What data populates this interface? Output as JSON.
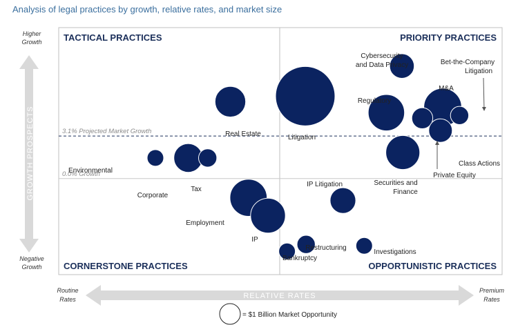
{
  "chart_data": {
    "type": "scatter",
    "title": "Analysis of legal practices by growth, relative rates, and market size",
    "quadrants": {
      "top_left": "TACTICAL PRACTICES",
      "top_right": "PRIORITY PRACTICES",
      "bottom_left": "CORNERSTONE PRACTICES",
      "bottom_right": "OPPORTUNISTIC PRACTICES"
    },
    "y_axis": {
      "label": "GROWTH PROSPECTS",
      "top_lines": [
        "Higher",
        "Growth"
      ],
      "bottom_lines": [
        "Negative",
        "Growth"
      ]
    },
    "x_axis": {
      "label": "RELATIVE RATES",
      "left_lines": [
        "Routine",
        "Rates"
      ],
      "right_lines": [
        "Premium",
        "Rates"
      ]
    },
    "reference_lines": [
      {
        "label": "3.1% Projected Market Growth",
        "y": 3.1,
        "style": "dashed"
      },
      {
        "label": "0.0% Growth",
        "y": 0.0,
        "style": "solid"
      }
    ],
    "legend": {
      "label": "= $1 Billion Market Opportunity",
      "size": 1
    },
    "xlim": [
      0,
      100
    ],
    "ylim": [
      -7,
      11
    ],
    "points": [
      {
        "label": "Real Estate",
        "x": 38.7,
        "y": 5.6,
        "size": 1.7
      },
      {
        "label": "Litigation",
        "x": 55.6,
        "y": 6.0,
        "size": 6.4
      },
      {
        "label": "Cybersecurity and Data Privacy",
        "x": 77.4,
        "y": 8.2,
        "size": 1.1
      },
      {
        "label": "Regulatory",
        "x": 73.9,
        "y": 4.8,
        "size": 2.4
      },
      {
        "label": "M&A",
        "x": 86.6,
        "y": 5.2,
        "size": 2.6
      },
      {
        "label": "Bet-the-Company Litigation",
        "x": 90.4,
        "y": 4.6,
        "size": 0.6
      },
      {
        "label": "Private Equity",
        "x": 82.0,
        "y": 4.4,
        "size": 0.8
      },
      {
        "label": "Class Actions",
        "x": 86.1,
        "y": 3.5,
        "size": 1.0
      },
      {
        "label": "Securities and Finance",
        "x": 77.6,
        "y": 1.9,
        "size": 2.1
      },
      {
        "label": "Environmental",
        "x": 21.8,
        "y": 1.5,
        "size": 0.5
      },
      {
        "label": "Corporate",
        "x": 29.2,
        "y": 1.5,
        "size": 1.5
      },
      {
        "label": "Tax",
        "x": 33.6,
        "y": 1.5,
        "size": 0.6
      },
      {
        "label": "Employment",
        "x": 42.8,
        "y": -1.4,
        "size": 2.5
      },
      {
        "label": "IP",
        "x": 47.2,
        "y": -2.7,
        "size": 2.2
      },
      {
        "label": "IP Litigation",
        "x": 64.1,
        "y": -1.6,
        "size": 1.2
      },
      {
        "label": "Restructuring",
        "x": 55.8,
        "y": -4.8,
        "size": 0.6
      },
      {
        "label": "Bankruptcy",
        "x": 51.5,
        "y": -5.3,
        "size": 0.5
      },
      {
        "label": "Investigations",
        "x": 68.9,
        "y": -4.9,
        "size": 0.5
      }
    ]
  }
}
